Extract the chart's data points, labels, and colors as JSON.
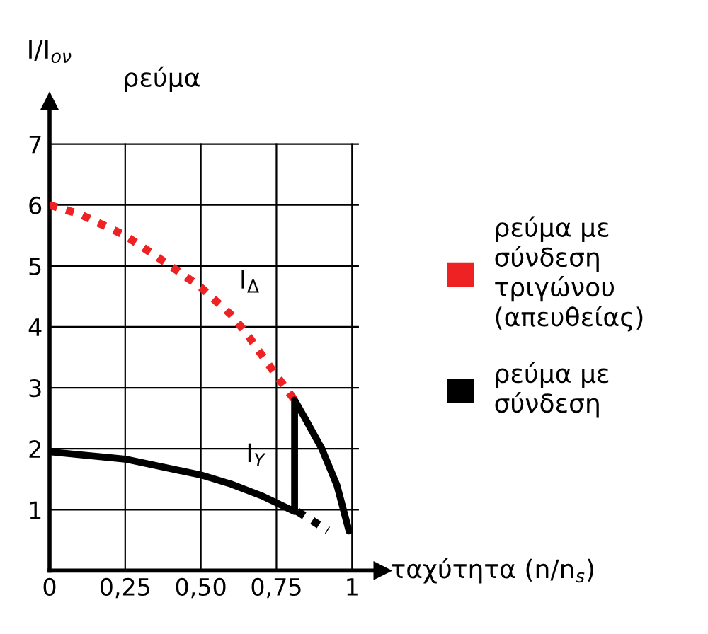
{
  "chart_data": {
    "type": "line",
    "ylabel": "I/I$_{ον}$",
    "xlabel": "ταχύτητα (n/n$_{s}$)",
    "annotations": [
      "ρεύμα",
      "I$_{Δ}$",
      "I$_{Y}$"
    ],
    "series": [
      {
        "name": "ρεύμα με σύνδεση τριγώνου (απευθείας)",
        "color": "#ee2222",
        "line_style": "dotted",
        "x": [
          0,
          0.1,
          0.25,
          0.4,
          0.5,
          0.6,
          0.65,
          0.7,
          0.75,
          0.81
        ],
        "values": [
          6,
          5.85,
          5.5,
          5.0,
          4.65,
          4.2,
          3.9,
          3.55,
          3.2,
          2.8
        ]
      },
      {
        "name": "ρεύμα με σύνδεση",
        "color": "#000000",
        "line_style": "solid",
        "x": [
          0,
          0.25,
          0.5,
          0.6,
          0.7,
          0.81,
          0.81,
          0.85,
          0.9,
          0.95,
          0.99
        ],
        "values": [
          1.95,
          1.83,
          1.57,
          1.42,
          1.23,
          0.97,
          2.8,
          2.45,
          2.0,
          1.4,
          0.65
        ]
      },
      {
        "color": "#000000",
        "line_style": "dotted",
        "x": [
          0.82,
          0.92
        ],
        "values": [
          0.97,
          0.66
        ]
      }
    ],
    "xlim": [
      0,
      1.1
    ],
    "ylim": [
      0,
      7.7
    ],
    "xticks": [
      0,
      {
        "value": 0.25,
        "label": "0,25"
      },
      {
        "value": 0.5,
        "label": "0,50"
      },
      {
        "value": 0.75,
        "label": "0,75"
      },
      1
    ],
    "yticks": [
      1,
      2,
      3,
      4,
      5,
      6,
      7
    ],
    "grid": true,
    "legend": "right"
  }
}
